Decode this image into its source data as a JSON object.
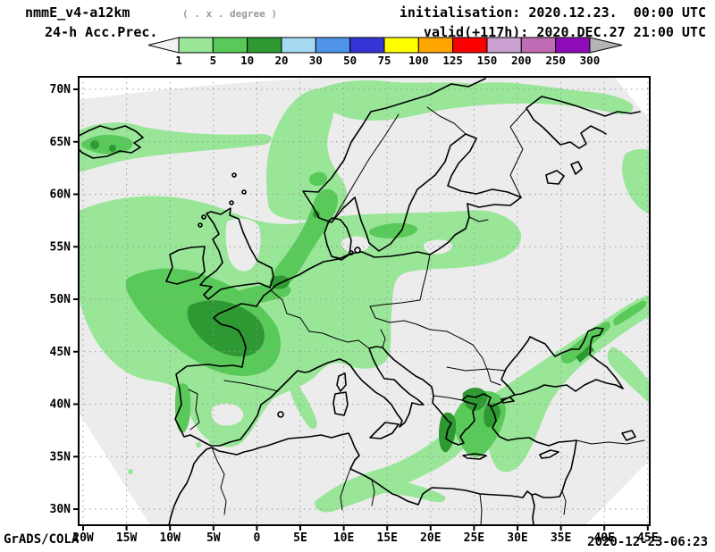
{
  "header": {
    "model": "nmmE_v4-a12km",
    "resolution_note": "( . x . degree )",
    "product": "24-h Acc.Prec.",
    "initialisation": "initialisation: 2020.12.23.  00:00 UTC",
    "valid": "valid(+117h): 2020.DEC.27 21:00 UTC"
  },
  "colorbar": {
    "labels": [
      "1",
      "5",
      "10",
      "20",
      "30",
      "50",
      "75",
      "100",
      "125",
      "150",
      "200",
      "250",
      "300"
    ],
    "colors": [
      "#99e699",
      "#59c959",
      "#2e9932",
      "#a6daf2",
      "#4f94e8",
      "#3535d6",
      "#ffff00",
      "#ffa500",
      "#fa0000",
      "#c9a0cf",
      "#bf6cb4",
      "#8e0cb8"
    ],
    "below_color": "#f2f2f2",
    "above_color": "#b4b4b4"
  },
  "map": {
    "lat_labels": [
      "70N",
      "65N",
      "60N",
      "55N",
      "50N",
      "45N",
      "40N",
      "35N",
      "30N"
    ],
    "lon_labels": [
      "20W",
      "15W",
      "10W",
      "5W",
      "0",
      "5E",
      "10E",
      "15E",
      "20E",
      "25E",
      "30E",
      "35E",
      "40E",
      "45E"
    ],
    "domain_background": "#ececec",
    "precip_level_colors": {
      "1_5": "#99e699",
      "5_10": "#59c959",
      "10_20": "#2e9932"
    }
  },
  "footer": {
    "credit": "GrADS/COLA",
    "timestamp": "2020-12-23-06:23"
  }
}
